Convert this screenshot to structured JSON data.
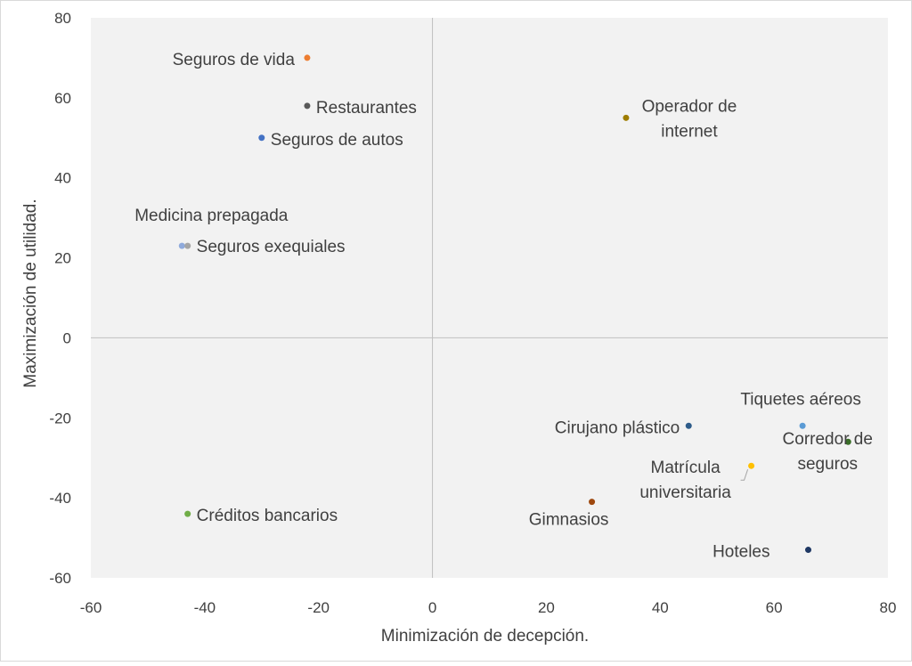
{
  "chart_data": {
    "type": "scatter",
    "title": "",
    "xlabel": "Minimización de decepción.",
    "ylabel": "Maximización de utilidad.",
    "xlim": [
      -60,
      80
    ],
    "ylim": [
      -60,
      80
    ],
    "xticks": [
      "-60",
      "-40",
      "-20",
      "0",
      "20",
      "40",
      "60",
      "80"
    ],
    "yticks": [
      "80",
      "60",
      "40",
      "20",
      "0",
      "-20",
      "-40",
      "-60"
    ],
    "grid": "zero lines only",
    "plot_background": "#f2f2f2",
    "points": [
      {
        "label": "Seguros de vida",
        "x": -22,
        "y": 70,
        "color": "#ed7d31"
      },
      {
        "label": "Restaurantes",
        "x": -22,
        "y": 58,
        "color": "#595959"
      },
      {
        "label": "Seguros de autos",
        "x": -30,
        "y": 50,
        "color": "#4472c4"
      },
      {
        "label": "Medicina prepagada",
        "x": -44,
        "y": 23,
        "color": "#8faadc"
      },
      {
        "label": "Seguros exequiales",
        "x": -43,
        "y": 23,
        "color": "#a5a5a5"
      },
      {
        "label": "Créditos bancarios",
        "x": -43,
        "y": -44,
        "color": "#70ad47"
      },
      {
        "label": "Operador de internet",
        "x": 34,
        "y": 55,
        "color": "#9e7d00"
      },
      {
        "label": "Tiquetes aéreos",
        "x": 65,
        "y": -22,
        "color": "#5b9bd5"
      },
      {
        "label": "Cirujano plástico",
        "x": 45,
        "y": -22,
        "color": "#2e5c8a"
      },
      {
        "label": "Corredor de seguros",
        "x": 73,
        "y": -26,
        "color": "#3a6e28"
      },
      {
        "label": "Matrícula universitaria",
        "x": 56,
        "y": -32,
        "color": "#ffc000"
      },
      {
        "label": "Gimnasios",
        "x": 28,
        "y": -41,
        "color": "#9e480e"
      },
      {
        "label": "Hoteles",
        "x": 66,
        "y": -53,
        "color": "#1f3864"
      }
    ]
  }
}
